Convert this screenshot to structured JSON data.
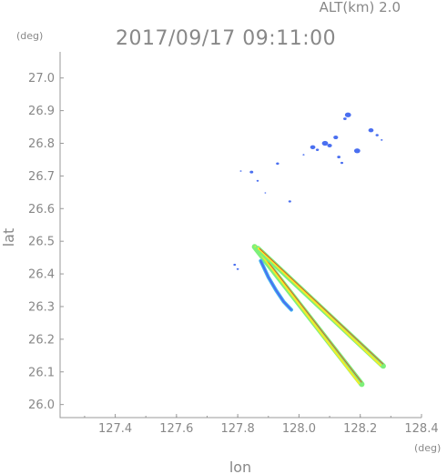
{
  "header": {
    "altitude": "ALT(km)  2.0",
    "timestamp": "2017/09/17  09:11:00"
  },
  "chart_data": {
    "type": "scatter",
    "xlabel": "lon",
    "ylabel": "lat",
    "x_unit": "(deg)",
    "y_unit": "(deg)",
    "xlim": [
      127.22,
      128.4
    ],
    "ylim": [
      25.96,
      27.08
    ],
    "xticks": [
      "127.4",
      "127.6",
      "127.8",
      "128.0",
      "128.2",
      "128.4"
    ],
    "yticks": [
      "26.0",
      "26.1",
      "26.2",
      "26.3",
      "26.4",
      "26.5",
      "26.6",
      "26.7",
      "26.8",
      "26.9",
      "27.0"
    ],
    "colors": {
      "echo_blue": "#4a6ff0",
      "echo_light_blue": "#42b6f0",
      "band_green": "#7df07a",
      "band_yellow": "#f3ec2a",
      "band_red": "#e03c28",
      "axis": "#999999"
    },
    "echo_cells": [
      {
        "lon": 128.16,
        "lat": 26.887,
        "size": 2.6
      },
      {
        "lon": 128.15,
        "lat": 26.875,
        "size": 1.4
      },
      {
        "lon": 128.235,
        "lat": 26.84,
        "size": 2.2
      },
      {
        "lon": 128.255,
        "lat": 26.825,
        "size": 1.3
      },
      {
        "lon": 128.27,
        "lat": 26.81,
        "size": 0.9
      },
      {
        "lon": 128.12,
        "lat": 26.818,
        "size": 2.0
      },
      {
        "lon": 128.085,
        "lat": 26.8,
        "size": 2.6
      },
      {
        "lon": 128.1,
        "lat": 26.793,
        "size": 2.0
      },
      {
        "lon": 128.045,
        "lat": 26.788,
        "size": 2.2
      },
      {
        "lon": 128.06,
        "lat": 26.78,
        "size": 1.3
      },
      {
        "lon": 128.19,
        "lat": 26.777,
        "size": 2.6
      },
      {
        "lon": 128.13,
        "lat": 26.758,
        "size": 1.4
      },
      {
        "lon": 128.14,
        "lat": 26.74,
        "size": 1.2
      },
      {
        "lon": 128.015,
        "lat": 26.765,
        "size": 0.8
      },
      {
        "lon": 127.93,
        "lat": 26.738,
        "size": 1.3
      },
      {
        "lon": 127.845,
        "lat": 26.712,
        "size": 1.5
      },
      {
        "lon": 127.865,
        "lat": 26.685,
        "size": 1.0
      },
      {
        "lon": 127.81,
        "lat": 26.715,
        "size": 0.8
      },
      {
        "lon": 127.97,
        "lat": 26.622,
        "size": 1.2
      },
      {
        "lon": 127.89,
        "lat": 26.648,
        "size": 0.7
      },
      {
        "lon": 127.79,
        "lat": 26.428,
        "size": 1.1
      },
      {
        "lon": 127.8,
        "lat": 26.415,
        "size": 1.0
      }
    ],
    "beam_echo_line": [
      {
        "lon": 127.875,
        "lat": 26.44
      },
      {
        "lon": 127.9,
        "lat": 26.39
      },
      {
        "lon": 127.925,
        "lat": 26.35
      },
      {
        "lon": 127.95,
        "lat": 26.315
      },
      {
        "lon": 127.975,
        "lat": 26.29
      }
    ],
    "beam_bands": [
      {
        "start": {
          "lon": 127.855,
          "lat": 26.483
        },
        "end": {
          "lon": 128.205,
          "lat": 26.062
        }
      },
      {
        "start": {
          "lon": 127.865,
          "lat": 26.478
        },
        "end": {
          "lon": 128.275,
          "lat": 26.118
        }
      }
    ]
  }
}
